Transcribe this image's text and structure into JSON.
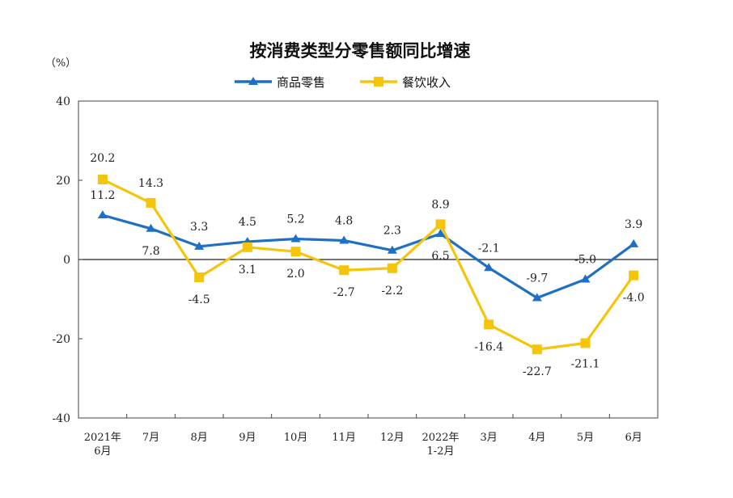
{
  "chart_data": {
    "type": "line",
    "title": "按消费类型分零售额同比增速",
    "unit_label": "（%）",
    "xlabel": "",
    "ylabel": "",
    "ylim": [
      -40,
      40
    ],
    "yticks": [
      "40",
      "20",
      "0",
      "-20",
      "-40"
    ],
    "ytick_values": [
      40,
      20,
      0,
      -20,
      -40
    ],
    "categories": [
      [
        "2021年",
        "6月"
      ],
      [
        "7月"
      ],
      [
        "8月"
      ],
      [
        "9月"
      ],
      [
        "10月"
      ],
      [
        "11月"
      ],
      [
        "12月"
      ],
      [
        "2022年",
        "1-2月"
      ],
      [
        "3月"
      ],
      [
        "4月"
      ],
      [
        "5月"
      ],
      [
        "6月"
      ]
    ],
    "legend_position": "top-center",
    "grid": false,
    "series": [
      {
        "name": "商品零售",
        "color": "#1F6FC5",
        "marker": "triangle",
        "values": [
          11.2,
          7.8,
          3.3,
          4.5,
          5.2,
          4.8,
          2.3,
          6.5,
          -2.1,
          -9.7,
          -5.0,
          3.9
        ],
        "labels": [
          "11.2",
          "7.8",
          "3.3",
          "4.5",
          "5.2",
          "4.8",
          "2.3",
          "6.5",
          "-2.1",
          "-9.7",
          "-5.0",
          "3.9"
        ]
      },
      {
        "name": "餐饮收入",
        "color": "#F5C50A",
        "marker": "square",
        "values": [
          20.2,
          14.3,
          -4.5,
          3.1,
          2.0,
          -2.7,
          -2.2,
          8.9,
          -16.4,
          -22.7,
          -21.1,
          -4.0
        ],
        "labels": [
          "20.2",
          "14.3",
          "-4.5",
          "3.1",
          "2.0",
          "-2.7",
          "-2.2",
          "8.9",
          "-16.4",
          "-22.7",
          "-21.1",
          "-4.0"
        ]
      }
    ]
  }
}
